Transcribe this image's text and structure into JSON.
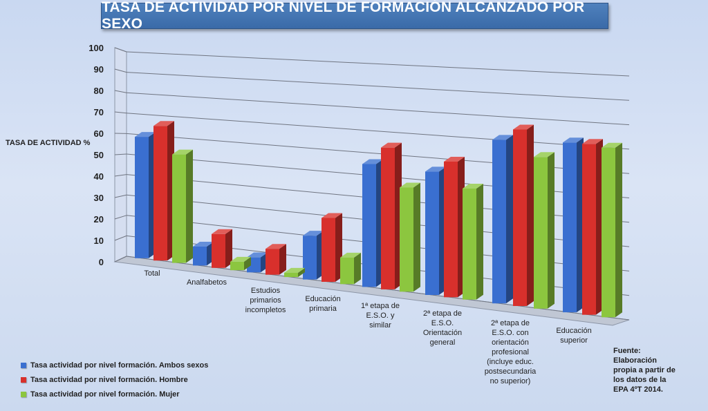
{
  "header": {
    "title": "TASA DE ACTIVIDAD POR NIVEL DE FORMACIÓN ALCANZADO POR SEXO"
  },
  "source": {
    "lines": [
      "Fuente:",
      "Elaboración",
      "propia a partir de",
      "los datos de la",
      "EPA 4ºT 2014."
    ]
  },
  "colors": {
    "ambos": "#3a6fd0",
    "hombre": "#d8302c",
    "mujer": "#8cc63f"
  },
  "chart_data": {
    "type": "bar",
    "title": "TASA DE ACTIVIDAD POR NIVEL DE FORMACIÓN ALCANZADO POR SEXO",
    "ylabel": "TASA DE ACTIVIDAD %",
    "xlabel": "",
    "ylim": [
      0,
      100
    ],
    "yticks": [
      "0",
      "10",
      "20",
      "30",
      "40",
      "50",
      "60",
      "70",
      "80",
      "90",
      "100"
    ],
    "grid": true,
    "legend_position": "bottom-left",
    "categories": [
      [
        "Total"
      ],
      [
        "Analfabetos"
      ],
      [
        "Estudios",
        "primarios",
        "incompletos"
      ],
      [
        "Educación",
        "primaria"
      ],
      [
        "1ª etapa de",
        "E.S.O. y",
        "similar"
      ],
      [
        "2ª etapa de",
        "E.S.O.",
        "Orientación",
        "general"
      ],
      [
        "2ª etapa de",
        "E.S.O. con",
        "orientación",
        "profesional",
        "(incluye educ.",
        "postsecundaria",
        "no superior)"
      ],
      [
        "Educación",
        "superior"
      ]
    ],
    "series": [
      {
        "name": "Tasa actividad por nivel formación. Ambos sexos",
        "values": [
          59,
          9,
          7,
          20,
          55,
          54,
          70,
          71
        ]
      },
      {
        "name": "Tasa actividad por nivel formación. Hombre",
        "values": [
          65,
          16,
          12,
          29,
          63,
          59,
          75,
          71
        ]
      },
      {
        "name": "Tasa actividad por nivel formación. Mujer",
        "values": [
          52,
          4,
          2,
          12,
          46,
          48,
          64,
          70
        ]
      }
    ]
  }
}
